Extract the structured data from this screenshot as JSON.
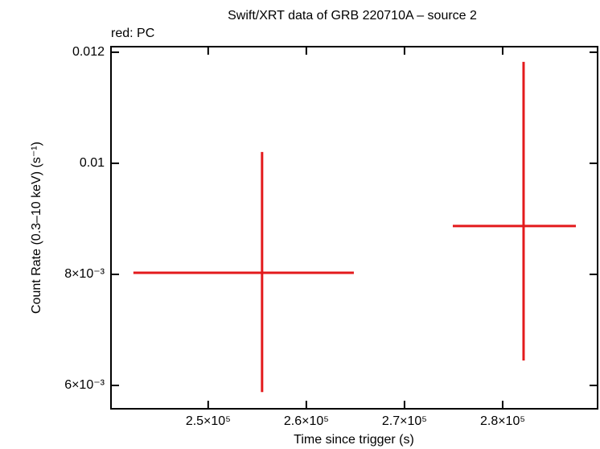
{
  "chart_data": {
    "type": "errorbar",
    "title": "Swift/XRT data of GRB 220710A – source 2",
    "annotation": "red: PC",
    "x_label": "Time since trigger (s)",
    "y_label": "Count Rate (0.3–10 keV) (s⁻¹)",
    "xlim": [
      240100,
      289670
    ],
    "ylim": [
      0.00558,
      0.0121
    ],
    "xticks": [
      {
        "value": 250000,
        "label": "2.5×10⁵"
      },
      {
        "value": 260000,
        "label": "2.6×10⁵"
      },
      {
        "value": 270000,
        "label": "2.7×10⁵"
      },
      {
        "value": 280000,
        "label": "2.8×10⁵"
      }
    ],
    "yticks": [
      {
        "value": 0.006,
        "label": "6×10⁻³"
      },
      {
        "value": 0.008,
        "label": "8×10⁻³"
      },
      0.01,
      0.012
    ],
    "series": [
      {
        "name": "PC",
        "color": "#e31a1c",
        "x": [
          255490,
          282130
        ],
        "xerr_minus": [
          13110,
          7210
        ],
        "xerr_plus": [
          9350,
          5330
        ],
        "values": [
          0.008029,
          0.00887
        ],
        "yerr_minus": [
          0.002149,
          0.002421
        ],
        "yerr_plus": [
          0.002174,
          0.002956
        ]
      }
    ]
  }
}
